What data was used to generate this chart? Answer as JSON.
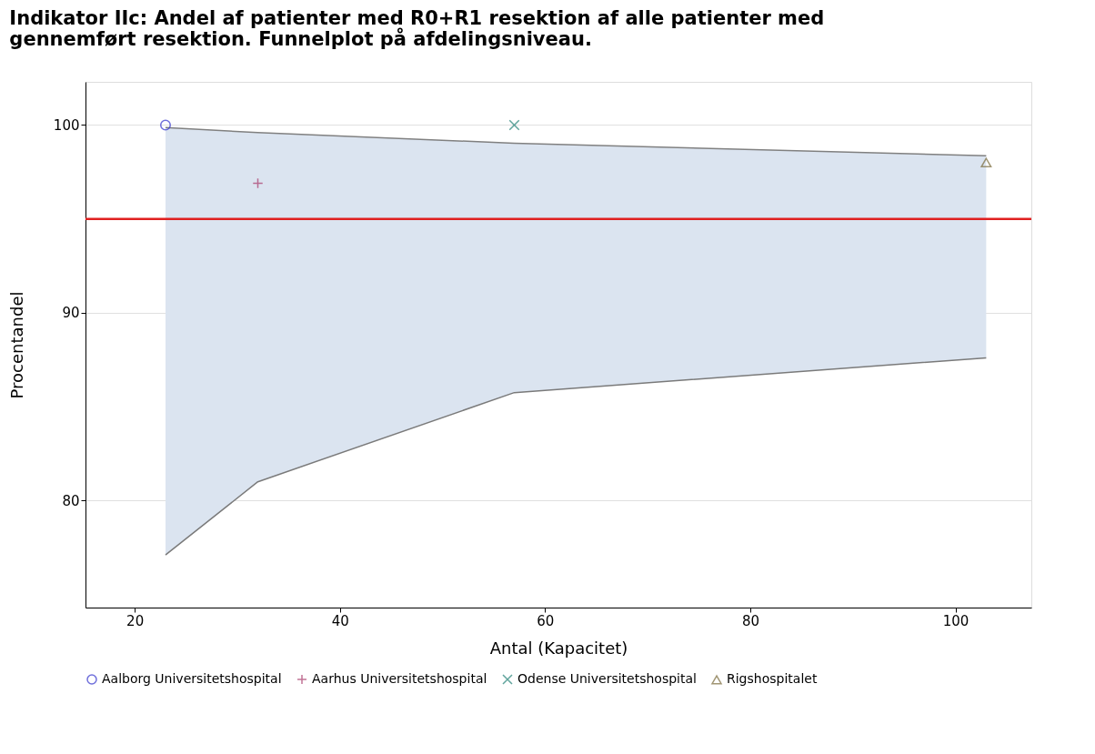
{
  "chart_data": {
    "type": "scatter",
    "title": [
      "Indikator IIc: Andel af patienter med R0+R1 resektion af alle patienter med",
      "gennemført resektion. Funnelplot på afdelingsniveau."
    ],
    "xlabel": "Antal (Kapacitet)",
    "ylabel": "Procentandel",
    "series": [
      {
        "type": "line",
        "x": [
          23,
          32,
          57,
          103
        ],
        "values": [
          99.86,
          99.6,
          99.03,
          98.36
        ],
        "lower": [
          77.1,
          81.0,
          85.75,
          87.6
        ],
        "upper": [
          99.86,
          99.6,
          99.03,
          98.36
        ],
        "color": "#808080"
      },
      {
        "type": "line",
        "x": [
          23,
          32,
          57,
          103
        ],
        "values": [
          77.1,
          81.0,
          85.75,
          87.6
        ],
        "color": "#7a7a7a"
      },
      {
        "name": "Aalborg Universitetshospital",
        "x": [
          23
        ],
        "values": [
          100
        ],
        "color": "#3333cc",
        "marker": "circle"
      },
      {
        "name": "Aarhus Universitetshospital",
        "x": [
          32
        ],
        "values": [
          96.9
        ],
        "color": "#a8386a",
        "marker": "plus"
      },
      {
        "name": "Odense Universitetshospital",
        "x": [
          57
        ],
        "values": [
          100
        ],
        "color": "#1f7f74",
        "marker": "cross"
      },
      {
        "name": "Rigshospitalet",
        "x": [
          103
        ],
        "values": [
          98.0
        ],
        "color": "#7a6a3a",
        "marker": "triangle"
      }
    ],
    "ref_lines": [
      {
        "axis": "y",
        "value": 95,
        "color": "#e02020"
      }
    ],
    "xlim": [
      15.2,
      107.4
    ],
    "xticks": [
      20,
      40,
      60,
      80,
      100
    ],
    "ylim": [
      74.3,
      102.3
    ],
    "yticks": [
      80,
      90,
      100
    ],
    "grid": "y",
    "legend": "bottom"
  }
}
